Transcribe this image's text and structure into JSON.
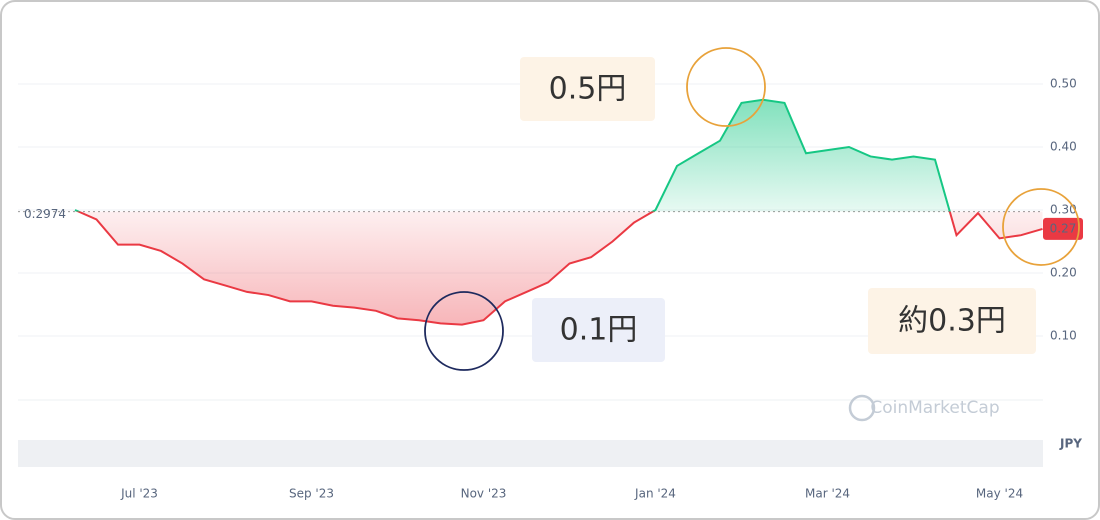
{
  "chart_data": {
    "type": "line",
    "categories": [
      null,
      null,
      null,
      "Jul '23",
      null,
      null,
      null,
      null,
      null,
      null,
      null,
      "Sep '23",
      null,
      null,
      null,
      null,
      null,
      null,
      null,
      "Nov '23",
      null,
      null,
      null,
      null,
      null,
      null,
      null,
      "Jan '24",
      null,
      null,
      null,
      null,
      null,
      null,
      null,
      "Mar '24",
      null,
      null,
      null,
      null,
      null,
      null,
      null,
      "May '24",
      null,
      null
    ],
    "values": [
      0.3,
      0.285,
      0.245,
      0.245,
      0.235,
      0.215,
      0.19,
      0.18,
      0.17,
      0.165,
      0.155,
      0.155,
      0.148,
      0.145,
      0.14,
      0.128,
      0.125,
      0.12,
      0.118,
      0.125,
      0.155,
      0.17,
      0.185,
      0.215,
      0.225,
      0.25,
      0.28,
      0.3,
      0.37,
      0.39,
      0.41,
      0.47,
      0.475,
      0.47,
      0.39,
      0.395,
      0.4,
      0.385,
      0.38,
      0.385,
      0.38,
      0.26,
      0.295,
      0.255,
      0.26,
      0.27
    ],
    "up_color": "#16c784",
    "down_color": "#ea3943",
    "baseline": 0.2974,
    "ylim": [
      0,
      0.6
    ],
    "yticks": [
      {
        "value": 0.1,
        "label": "0.10"
      },
      {
        "value": 0.2,
        "label": "0.20"
      },
      {
        "value": 0.3,
        "label": "0.30"
      },
      {
        "value": 0.4,
        "label": "0.40"
      },
      {
        "value": 0.5,
        "label": "0.50"
      }
    ],
    "currency": "JPY",
    "watermark": "CoinMarketCap",
    "annotations": [
      {
        "text": "0.5円"
      },
      {
        "text": "0.1円"
      },
      {
        "text": "約0.3円"
      }
    ]
  }
}
